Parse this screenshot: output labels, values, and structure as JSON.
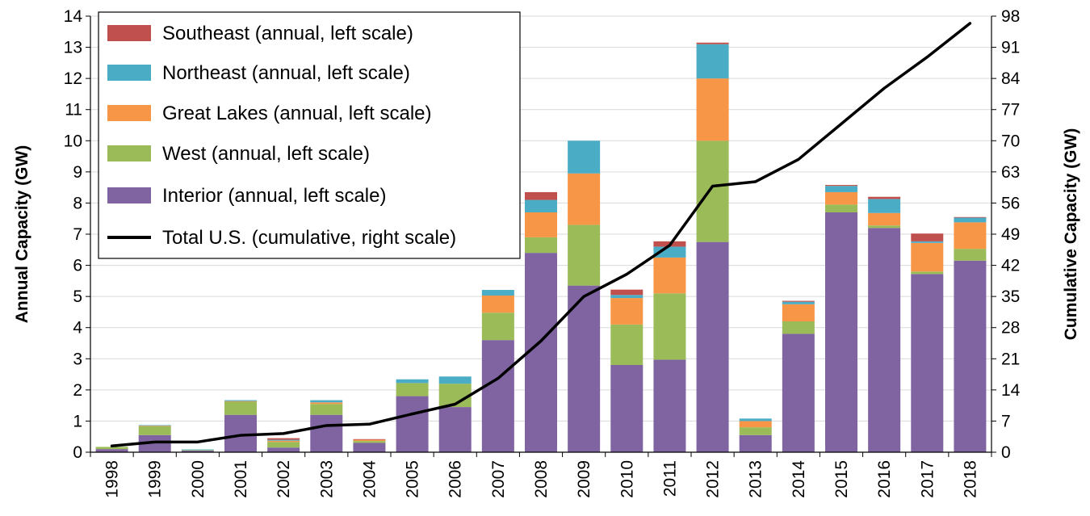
{
  "chart_data": {
    "type": "bar",
    "stacked": true,
    "categories": [
      "1998",
      "1999",
      "2000",
      "2001",
      "2002",
      "2003",
      "2004",
      "2005",
      "2006",
      "2007",
      "2008",
      "2009",
      "2010",
      "2011",
      "2012",
      "2013",
      "2014",
      "2015",
      "2016",
      "2017",
      "2018"
    ],
    "series": [
      {
        "name": "Interior (annual, left scale)",
        "color": "#8064a2",
        "values": [
          0.1,
          0.55,
          0.05,
          1.2,
          0.15,
          1.2,
          0.3,
          1.8,
          1.45,
          3.6,
          6.4,
          5.35,
          2.8,
          2.97,
          6.75,
          0.55,
          3.8,
          7.7,
          7.2,
          5.72,
          6.15
        ]
      },
      {
        "name": "West (annual, left scale)",
        "color": "#9bbb59",
        "values": [
          0.07,
          0.28,
          0.02,
          0.42,
          0.18,
          0.35,
          0.06,
          0.42,
          0.75,
          0.88,
          0.5,
          1.95,
          1.3,
          2.13,
          3.25,
          0.25,
          0.4,
          0.25,
          0.08,
          0.08,
          0.38
        ]
      },
      {
        "name": "Great Lakes (annual, left scale)",
        "color": "#f79646",
        "values": [
          0.0,
          0.02,
          0.0,
          0.02,
          0.04,
          0.05,
          0.04,
          0.0,
          0.0,
          0.55,
          0.8,
          1.65,
          0.85,
          1.15,
          2.0,
          0.2,
          0.55,
          0.4,
          0.4,
          0.92,
          0.85
        ]
      },
      {
        "name": "Northeast (annual, left scale)",
        "color": "#4bacc6",
        "values": [
          0.0,
          0.02,
          0.02,
          0.03,
          0.03,
          0.07,
          0.0,
          0.12,
          0.23,
          0.18,
          0.4,
          1.05,
          0.1,
          0.35,
          1.1,
          0.08,
          0.08,
          0.2,
          0.45,
          0.05,
          0.15
        ]
      },
      {
        "name": "Southeast (annual, left scale)",
        "color": "#c0504d",
        "values": [
          0.0,
          0.0,
          0.0,
          0.0,
          0.05,
          0.0,
          0.02,
          0.0,
          0.0,
          0.0,
          0.25,
          0.0,
          0.17,
          0.17,
          0.05,
          0.0,
          0.03,
          0.03,
          0.07,
          0.25,
          0.02
        ]
      }
    ],
    "line": {
      "name": "Total U.S. (cumulative, right scale)",
      "color": "#000000",
      "axis": "right",
      "values": [
        1.4,
        2.3,
        2.3,
        3.8,
        4.2,
        6.0,
        6.3,
        8.6,
        10.8,
        16.6,
        25.0,
        35.0,
        40.0,
        46.5,
        59.8,
        60.8,
        65.8,
        73.8,
        81.8,
        88.8,
        96.4
      ]
    },
    "ylabel": "Annual Capacity (GW)",
    "y2label": "Cumulative Capacity (GW)",
    "ylim": [
      0,
      14
    ],
    "y2lim": [
      0,
      98
    ],
    "yticks": [
      "0",
      "1",
      "2",
      "3",
      "4",
      "5",
      "6",
      "7",
      "8",
      "9",
      "10",
      "11",
      "12",
      "13",
      "14"
    ],
    "y2ticks": [
      "0",
      "7",
      "14",
      "21",
      "28",
      "35",
      "42",
      "49",
      "56",
      "63",
      "70",
      "77",
      "84",
      "91",
      "98"
    ],
    "legend_position": "top-left",
    "legend_order": [
      "Southeast (annual, left scale)",
      "Northeast (annual, left scale)",
      "Great Lakes (annual, left scale)",
      "West (annual, left scale)",
      "Interior (annual, left scale)",
      "Total U.S. (cumulative, right scale)"
    ],
    "grid": true
  }
}
